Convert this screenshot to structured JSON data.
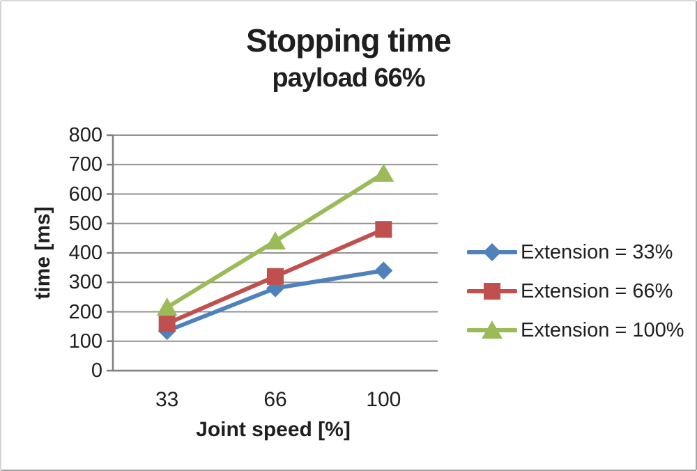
{
  "chart_data": {
    "type": "line",
    "title": "Stopping time",
    "subtitle": "payload 66%",
    "xlabel": "Joint speed [%]",
    "ylabel": "time [ms]",
    "categories": [
      "33",
      "66",
      "100"
    ],
    "series": [
      {
        "name": "Extension = 33%",
        "color": "#4F81BD",
        "marker": "diamond",
        "values": [
          135,
          280,
          340
        ]
      },
      {
        "name": "Extension = 66%",
        "color": "#C0504D",
        "marker": "square",
        "values": [
          160,
          320,
          480
        ]
      },
      {
        "name": "Extension = 100%",
        "color": "#9BBB59",
        "marker": "triangle",
        "values": [
          215,
          440,
          670
        ]
      }
    ],
    "ylim": [
      0,
      800
    ],
    "ytick_step": 100,
    "grid": true,
    "legend_position": "right",
    "colors": {
      "gridline": "#929292",
      "axis": "#7f7f7f",
      "text": "#1f1f1f"
    }
  }
}
